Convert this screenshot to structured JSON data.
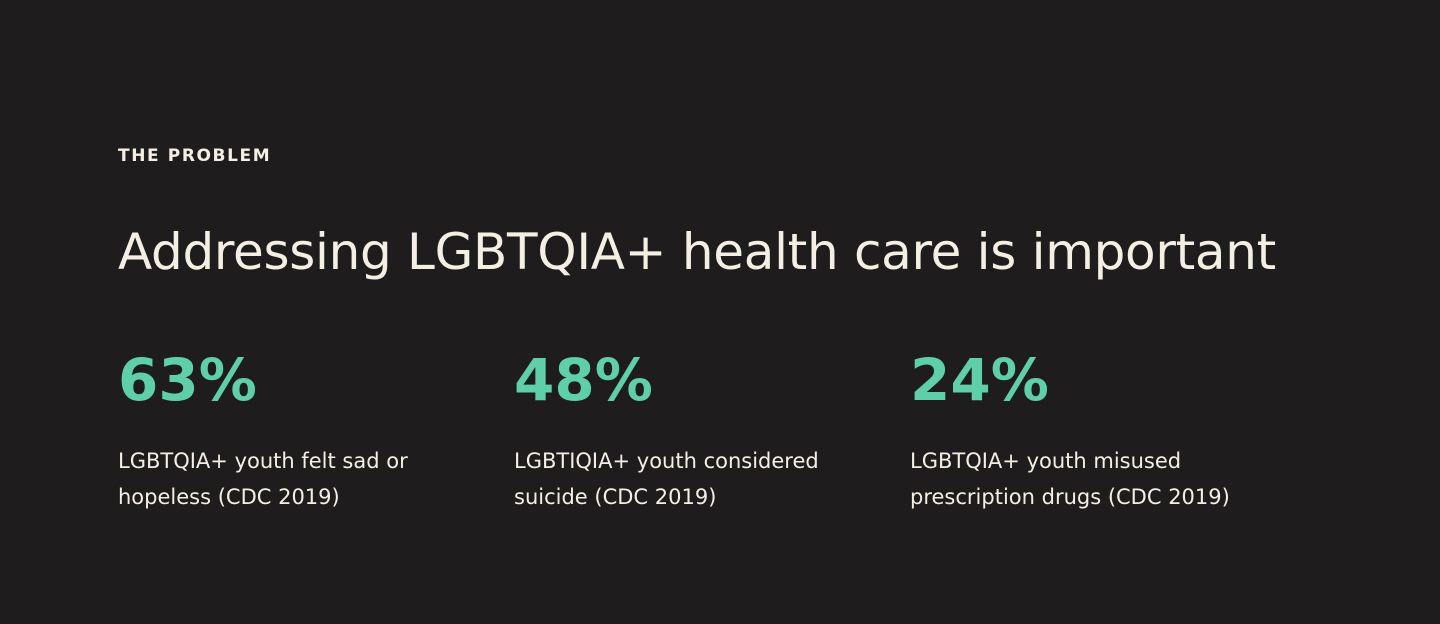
{
  "section": {
    "eyebrow": "THE PROBLEM",
    "headline": "Addressing LGBTQIA+ health care is important"
  },
  "stats": [
    {
      "value": "63%",
      "caption_line1": "LGBTQIA+ youth felt sad or",
      "caption_line2": "hopeless (CDC 2019)"
    },
    {
      "value": "48%",
      "caption_line1": "LGBTIQIA+ youth considered",
      "caption_line2": "suicide (CDC 2019)"
    },
    {
      "value": "24%",
      "caption_line1": "LGBTQIA+ youth misused",
      "caption_line2": "prescription drugs (CDC 2019)"
    }
  ],
  "colors": {
    "background": "#1e1c1d",
    "text": "#f5efe3",
    "accent": "#5fcfaa"
  }
}
